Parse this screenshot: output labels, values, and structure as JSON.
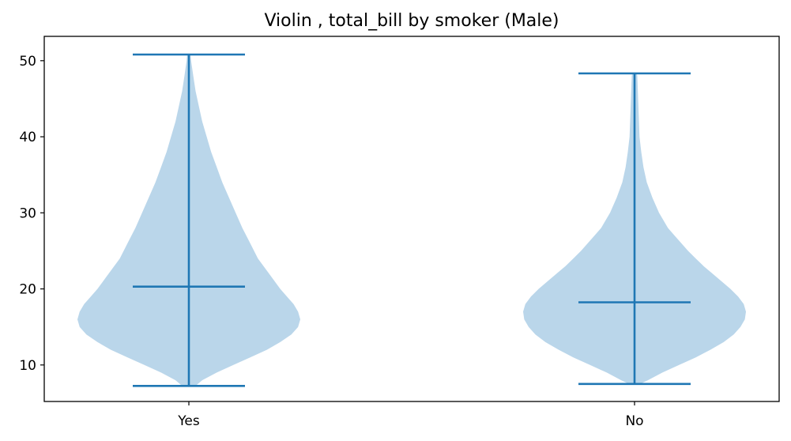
{
  "chart_data": {
    "type": "violin",
    "title": "Violin , total_bill by smoker (Male)",
    "xlabel": "",
    "ylabel": "",
    "categories": [
      "Yes",
      "No"
    ],
    "ylim": [
      5.2,
      53.2
    ],
    "yticks": [
      10,
      20,
      30,
      40,
      50
    ],
    "grid": false,
    "colors": {
      "body": "#bad6ea",
      "lines": "#1f77b4",
      "axes": "#000000"
    },
    "series": [
      {
        "category": "Yes",
        "min": 7.25,
        "median": 20.3,
        "max": 50.81,
        "density": [
          [
            7.25,
            0.06
          ],
          [
            8,
            0.12
          ],
          [
            9,
            0.25
          ],
          [
            10,
            0.4
          ],
          [
            11,
            0.55
          ],
          [
            12,
            0.7
          ],
          [
            13,
            0.82
          ],
          [
            14,
            0.92
          ],
          [
            15,
            0.98
          ],
          [
            16,
            1.0
          ],
          [
            17,
            0.98
          ],
          [
            18,
            0.94
          ],
          [
            19,
            0.88
          ],
          [
            20,
            0.82
          ],
          [
            22,
            0.72
          ],
          [
            24,
            0.62
          ],
          [
            26,
            0.55
          ],
          [
            28,
            0.48
          ],
          [
            30,
            0.42
          ],
          [
            32,
            0.36
          ],
          [
            34,
            0.3
          ],
          [
            36,
            0.25
          ],
          [
            38,
            0.2
          ],
          [
            40,
            0.16
          ],
          [
            42,
            0.12
          ],
          [
            44,
            0.09
          ],
          [
            46,
            0.06
          ],
          [
            48,
            0.04
          ],
          [
            50,
            0.02
          ],
          [
            50.81,
            0.015
          ]
        ]
      },
      {
        "category": "No",
        "min": 7.51,
        "median": 18.24,
        "max": 48.33,
        "density": [
          [
            7.51,
            0.05
          ],
          [
            8,
            0.12
          ],
          [
            9,
            0.25
          ],
          [
            10,
            0.4
          ],
          [
            11,
            0.55
          ],
          [
            12,
            0.68
          ],
          [
            13,
            0.8
          ],
          [
            14,
            0.89
          ],
          [
            15,
            0.95
          ],
          [
            16,
            0.99
          ],
          [
            17,
            1.0
          ],
          [
            18,
            0.98
          ],
          [
            19,
            0.93
          ],
          [
            20,
            0.86
          ],
          [
            21,
            0.78
          ],
          [
            22,
            0.7
          ],
          [
            23,
            0.62
          ],
          [
            24,
            0.55
          ],
          [
            25,
            0.48
          ],
          [
            26,
            0.42
          ],
          [
            27,
            0.36
          ],
          [
            28,
            0.3
          ],
          [
            30,
            0.22
          ],
          [
            32,
            0.16
          ],
          [
            34,
            0.11
          ],
          [
            36,
            0.08
          ],
          [
            38,
            0.06
          ],
          [
            40,
            0.045
          ],
          [
            42,
            0.04
          ],
          [
            44,
            0.035
          ],
          [
            46,
            0.03
          ],
          [
            48,
            0.025
          ],
          [
            48.33,
            0.02
          ]
        ]
      }
    ]
  }
}
